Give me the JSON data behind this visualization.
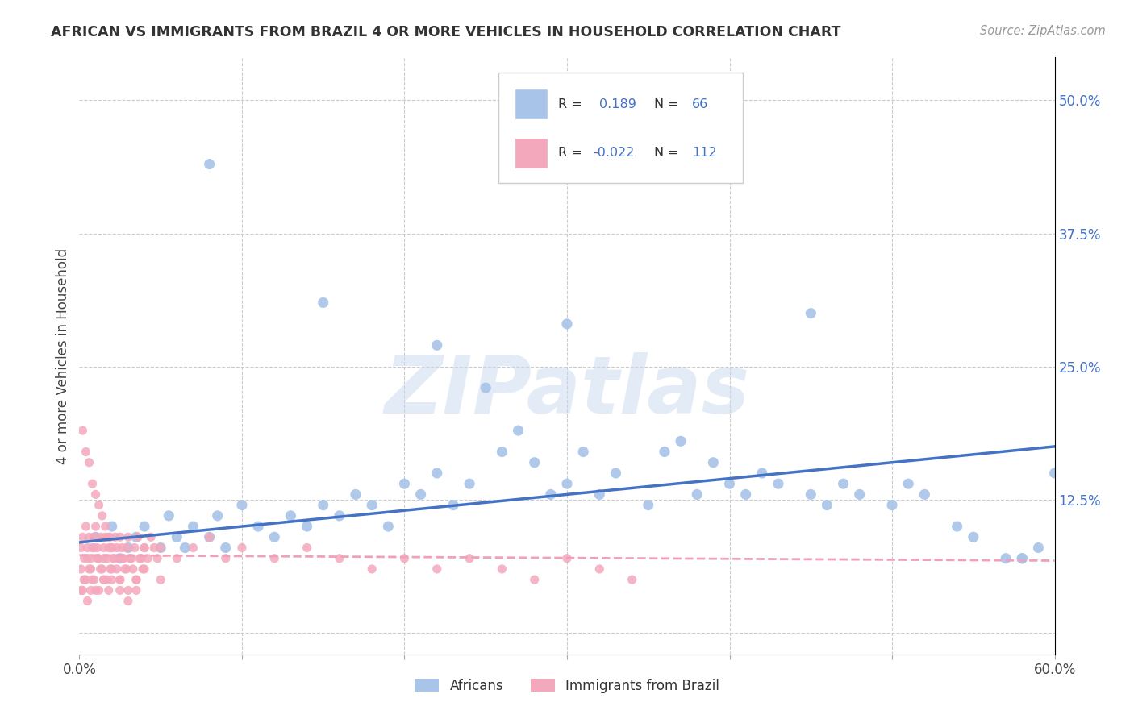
{
  "title": "AFRICAN VS IMMIGRANTS FROM BRAZIL 4 OR MORE VEHICLES IN HOUSEHOLD CORRELATION CHART",
  "source": "Source: ZipAtlas.com",
  "ylabel": "4 or more Vehicles in Household",
  "xlim": [
    0.0,
    0.6
  ],
  "ylim": [
    -0.02,
    0.54
  ],
  "r_african": 0.189,
  "n_african": 66,
  "r_brazil": -0.022,
  "n_brazil": 112,
  "blue_color": "#A8C4E8",
  "pink_color": "#F4A8BC",
  "line_blue": "#4472C4",
  "line_pink_dashed": "#F0A0B8",
  "african_x": [
    0.01,
    0.02,
    0.025,
    0.03,
    0.035,
    0.04,
    0.05,
    0.055,
    0.06,
    0.065,
    0.07,
    0.08,
    0.085,
    0.09,
    0.1,
    0.11,
    0.12,
    0.13,
    0.14,
    0.15,
    0.16,
    0.17,
    0.18,
    0.19,
    0.2,
    0.21,
    0.22,
    0.23,
    0.24,
    0.25,
    0.26,
    0.27,
    0.28,
    0.29,
    0.3,
    0.31,
    0.32,
    0.33,
    0.35,
    0.36,
    0.37,
    0.38,
    0.39,
    0.4,
    0.41,
    0.42,
    0.43,
    0.45,
    0.46,
    0.47,
    0.48,
    0.5,
    0.51,
    0.52,
    0.54,
    0.55,
    0.57,
    0.58,
    0.59,
    0.6,
    0.08,
    0.15,
    0.22,
    0.3,
    0.45,
    0.58
  ],
  "african_y": [
    0.09,
    0.1,
    0.07,
    0.08,
    0.09,
    0.1,
    0.08,
    0.11,
    0.09,
    0.08,
    0.1,
    0.09,
    0.11,
    0.08,
    0.12,
    0.1,
    0.09,
    0.11,
    0.1,
    0.12,
    0.11,
    0.13,
    0.12,
    0.1,
    0.14,
    0.13,
    0.15,
    0.12,
    0.14,
    0.23,
    0.17,
    0.19,
    0.16,
    0.13,
    0.14,
    0.17,
    0.13,
    0.15,
    0.12,
    0.17,
    0.18,
    0.13,
    0.16,
    0.14,
    0.13,
    0.15,
    0.14,
    0.13,
    0.12,
    0.14,
    0.13,
    0.12,
    0.14,
    0.13,
    0.1,
    0.09,
    0.07,
    0.07,
    0.08,
    0.15,
    0.44,
    0.31,
    0.27,
    0.29,
    0.3,
    0.07
  ],
  "brazil_x": [
    0.001,
    0.002,
    0.003,
    0.004,
    0.005,
    0.006,
    0.007,
    0.008,
    0.009,
    0.01,
    0.011,
    0.012,
    0.013,
    0.014,
    0.015,
    0.016,
    0.017,
    0.018,
    0.019,
    0.02,
    0.021,
    0.022,
    0.023,
    0.024,
    0.025,
    0.026,
    0.027,
    0.028,
    0.029,
    0.03,
    0.032,
    0.034,
    0.036,
    0.038,
    0.04,
    0.042,
    0.044,
    0.046,
    0.048,
    0.05,
    0.001,
    0.003,
    0.005,
    0.007,
    0.009,
    0.011,
    0.013,
    0.015,
    0.017,
    0.019,
    0.021,
    0.023,
    0.025,
    0.027,
    0.029,
    0.031,
    0.033,
    0.035,
    0.037,
    0.039,
    0.002,
    0.004,
    0.006,
    0.008,
    0.01,
    0.012,
    0.014,
    0.016,
    0.018,
    0.02,
    0.04,
    0.06,
    0.07,
    0.08,
    0.09,
    0.1,
    0.12,
    0.14,
    0.16,
    0.18,
    0.2,
    0.22,
    0.24,
    0.26,
    0.28,
    0.3,
    0.32,
    0.34,
    0.002,
    0.004,
    0.006,
    0.008,
    0.01,
    0.015,
    0.02,
    0.025,
    0.03,
    0.035,
    0.04,
    0.05,
    0.001,
    0.003,
    0.005,
    0.007,
    0.009,
    0.012,
    0.015,
    0.018,
    0.02,
    0.025,
    0.03,
    0.035
  ],
  "brazil_y": [
    0.08,
    0.09,
    0.07,
    0.1,
    0.08,
    0.09,
    0.07,
    0.08,
    0.09,
    0.1,
    0.08,
    0.07,
    0.09,
    0.06,
    0.08,
    0.09,
    0.07,
    0.08,
    0.09,
    0.08,
    0.07,
    0.09,
    0.08,
    0.07,
    0.09,
    0.08,
    0.07,
    0.06,
    0.08,
    0.09,
    0.07,
    0.08,
    0.09,
    0.07,
    0.08,
    0.07,
    0.09,
    0.08,
    0.07,
    0.08,
    0.06,
    0.05,
    0.07,
    0.06,
    0.08,
    0.07,
    0.06,
    0.07,
    0.05,
    0.06,
    0.07,
    0.06,
    0.05,
    0.07,
    0.06,
    0.07,
    0.06,
    0.05,
    0.07,
    0.06,
    0.19,
    0.17,
    0.16,
    0.14,
    0.13,
    0.12,
    0.11,
    0.1,
    0.09,
    0.08,
    0.08,
    0.07,
    0.08,
    0.09,
    0.07,
    0.08,
    0.07,
    0.08,
    0.07,
    0.06,
    0.07,
    0.06,
    0.07,
    0.06,
    0.05,
    0.07,
    0.06,
    0.05,
    0.04,
    0.05,
    0.06,
    0.05,
    0.04,
    0.05,
    0.06,
    0.05,
    0.04,
    0.05,
    0.06,
    0.05,
    0.04,
    0.05,
    0.03,
    0.04,
    0.05,
    0.04,
    0.05,
    0.04,
    0.05,
    0.04,
    0.03,
    0.04
  ],
  "watermark": "ZIPatlas",
  "blue_line_start_y": 0.085,
  "blue_line_end_y": 0.175,
  "pink_line_y": 0.073
}
